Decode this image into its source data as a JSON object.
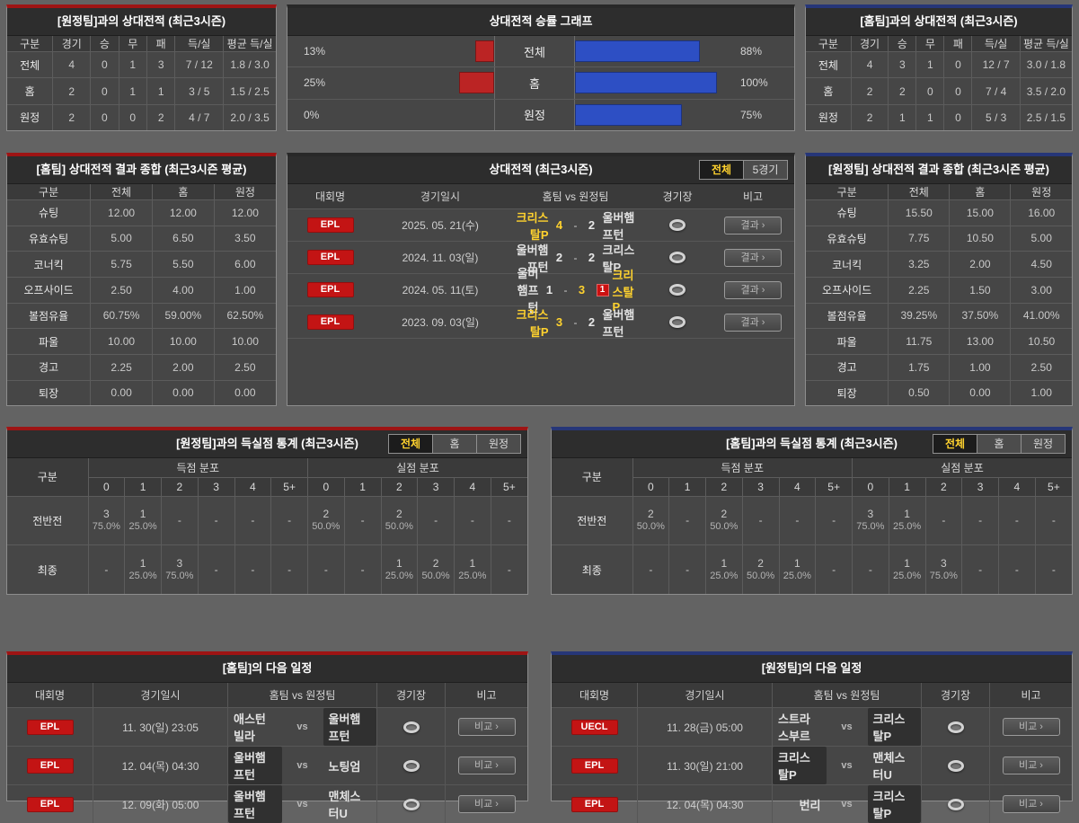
{
  "vs_away_record": {
    "title": "[원정팀]과의 상대전적 (최근3시즌)",
    "columns": [
      "구분",
      "경기",
      "승",
      "무",
      "패",
      "득/실",
      "평균 득/실"
    ],
    "rows": [
      [
        "전체",
        "4",
        "0",
        "1",
        "3",
        "7 / 12",
        "1.8 / 3.0"
      ],
      [
        "홈",
        "2",
        "0",
        "1",
        "1",
        "3 / 5",
        "1.5 / 2.5"
      ],
      [
        "원정",
        "2",
        "0",
        "0",
        "2",
        "4 / 7",
        "2.0 / 3.5"
      ]
    ]
  },
  "win_chart": {
    "title": "상대전적 승률 그래프",
    "rows": [
      {
        "label": "전체",
        "left_label": "13%",
        "left_pct": 13,
        "right_label": "88%",
        "right_pct": 88
      },
      {
        "label": "홈",
        "left_label": "25%",
        "left_pct": 25,
        "right_label": "100%",
        "right_pct": 100
      },
      {
        "label": "원정",
        "left_label": "0%",
        "left_pct": 0,
        "right_label": "75%",
        "right_pct": 75
      }
    ]
  },
  "chart_data": {
    "type": "bar",
    "title": "상대전적 승률 그래프",
    "categories": [
      "전체",
      "홈",
      "원정"
    ],
    "series": [
      {
        "name": "red-left",
        "color": "#bb2424",
        "values": [
          13,
          25,
          0
        ]
      },
      {
        "name": "blue-right",
        "color": "#2d4fc4",
        "values": [
          88,
          100,
          75
        ]
      }
    ],
    "unit": "%",
    "xlim": [
      0,
      100
    ],
    "orientation": "horizontal-diverging"
  },
  "vs_home_record": {
    "title": "[홈팀]과의 상대전적 (최근3시즌)",
    "columns": [
      "구분",
      "경기",
      "승",
      "무",
      "패",
      "득/실",
      "평균 득/실"
    ],
    "rows": [
      [
        "전체",
        "4",
        "3",
        "1",
        "0",
        "12 / 7",
        "3.0 / 1.8"
      ],
      [
        "홈",
        "2",
        "2",
        "0",
        "0",
        "7 / 4",
        "3.5 / 2.0"
      ],
      [
        "원정",
        "2",
        "1",
        "1",
        "0",
        "5 / 3",
        "2.5 / 1.5"
      ]
    ]
  },
  "home_summary": {
    "title": "[홈팀] 상대전적 결과 종합 (최근3시즌 평균)",
    "columns": [
      "구분",
      "전체",
      "홈",
      "원정"
    ],
    "rows": [
      [
        "슈팅",
        "12.00",
        "12.00",
        "12.00"
      ],
      [
        "유효슈팅",
        "5.00",
        "6.50",
        "3.50"
      ],
      [
        "코너킥",
        "5.75",
        "5.50",
        "6.00"
      ],
      [
        "오프사이드",
        "2.50",
        "4.00",
        "1.00"
      ],
      [
        "볼점유율",
        "60.75%",
        "59.00%",
        "62.50%"
      ],
      [
        "파울",
        "10.00",
        "10.00",
        "10.00"
      ],
      [
        "경고",
        "2.25",
        "2.00",
        "2.50"
      ],
      [
        "퇴장",
        "0.00",
        "0.00",
        "0.00"
      ]
    ]
  },
  "away_summary": {
    "title": "[원정팀] 상대전적 결과 종합 (최근3시즌 평균)",
    "columns": [
      "구분",
      "전체",
      "홈",
      "원정"
    ],
    "rows": [
      [
        "슈팅",
        "15.50",
        "15.00",
        "16.00"
      ],
      [
        "유효슈팅",
        "7.75",
        "10.50",
        "5.00"
      ],
      [
        "코너킥",
        "3.25",
        "2.00",
        "4.50"
      ],
      [
        "오프사이드",
        "2.25",
        "1.50",
        "3.00"
      ],
      [
        "볼점유율",
        "39.25%",
        "37.50%",
        "41.00%"
      ],
      [
        "파울",
        "11.75",
        "13.00",
        "10.50"
      ],
      [
        "경고",
        "1.75",
        "1.00",
        "2.50"
      ],
      [
        "퇴장",
        "0.50",
        "0.00",
        "1.00"
      ]
    ]
  },
  "h2h_matches": {
    "title": "상대전적 (최근3시즌)",
    "tabs": [
      {
        "label": "전체",
        "state": "active"
      },
      {
        "label": "5경기",
        "state": ""
      }
    ],
    "columns": [
      "대회명",
      "경기일시",
      "홈팀  vs  원정팀",
      "경기장",
      "비고"
    ],
    "rows": [
      {
        "league": "EPL",
        "date": "2025. 05. 21(수)",
        "home": "크리스탈P",
        "home_state": "win",
        "home_card": "",
        "score_home": "4",
        "sep": "-",
        "score_away": "2",
        "away_card": "",
        "away": "울버햄프턴",
        "away_state": "",
        "btn": "결과 ›"
      },
      {
        "league": "EPL",
        "date": "2024. 11. 03(일)",
        "home": "울버햄프턴",
        "home_state": "",
        "home_card": "",
        "score_home": "2",
        "sep": "-",
        "score_away": "2",
        "away_card": "",
        "away": "크리스탈P",
        "away_state": "",
        "btn": "결과 ›"
      },
      {
        "league": "EPL",
        "date": "2024. 05. 11(토)",
        "home": "울버햄프턴",
        "home_state": "",
        "home_card": "",
        "score_home": "1",
        "sep": "-",
        "score_away": "3",
        "away_card": "1",
        "away": "크리스탈P",
        "away_state": "win",
        "btn": "결과 ›"
      },
      {
        "league": "EPL",
        "date": "2023. 09. 03(일)",
        "home": "크리스탈P",
        "home_state": "win",
        "home_card": "",
        "score_home": "3",
        "sep": "-",
        "score_away": "2",
        "away_card": "",
        "away": "울버햄프턴",
        "away_state": "",
        "btn": "결과 ›"
      }
    ]
  },
  "goal_stats_left": {
    "title": "[원정팀]과의 득실점 통계 (최근3시즌)",
    "tabs": [
      {
        "label": "전체",
        "state": "active"
      },
      {
        "label": "홈",
        "state": ""
      },
      {
        "label": "원정",
        "state": ""
      }
    ],
    "corner_label": "구분",
    "groups": [
      "득점 분포",
      "실점 분포"
    ],
    "subcols": [
      "0",
      "1",
      "2",
      "3",
      "4",
      "5+",
      "0",
      "1",
      "2",
      "3",
      "4",
      "5+"
    ],
    "rows": [
      {
        "label": "전반전",
        "cells": [
          {
            "n": "3",
            "p": "75.0%"
          },
          {
            "n": "1",
            "p": "25.0%"
          },
          {
            "n": "-",
            "p": ""
          },
          {
            "n": "-",
            "p": ""
          },
          {
            "n": "-",
            "p": ""
          },
          {
            "n": "-",
            "p": ""
          },
          {
            "n": "2",
            "p": "50.0%"
          },
          {
            "n": "-",
            "p": ""
          },
          {
            "n": "2",
            "p": "50.0%"
          },
          {
            "n": "-",
            "p": ""
          },
          {
            "n": "-",
            "p": ""
          },
          {
            "n": "-",
            "p": ""
          }
        ]
      },
      {
        "label": "최종",
        "cells": [
          {
            "n": "-",
            "p": ""
          },
          {
            "n": "1",
            "p": "25.0%"
          },
          {
            "n": "3",
            "p": "75.0%"
          },
          {
            "n": "-",
            "p": ""
          },
          {
            "n": "-",
            "p": ""
          },
          {
            "n": "-",
            "p": ""
          },
          {
            "n": "-",
            "p": ""
          },
          {
            "n": "-",
            "p": ""
          },
          {
            "n": "1",
            "p": "25.0%"
          },
          {
            "n": "2",
            "p": "50.0%"
          },
          {
            "n": "1",
            "p": "25.0%"
          },
          {
            "n": "-",
            "p": ""
          }
        ]
      }
    ]
  },
  "goal_stats_right": {
    "title": "[홈팀]과의 득실점 통계 (최근3시즌)",
    "tabs": [
      {
        "label": "전체",
        "state": "active"
      },
      {
        "label": "홈",
        "state": ""
      },
      {
        "label": "원정",
        "state": ""
      }
    ],
    "corner_label": "구분",
    "groups": [
      "득점 분포",
      "실점 분포"
    ],
    "subcols": [
      "0",
      "1",
      "2",
      "3",
      "4",
      "5+",
      "0",
      "1",
      "2",
      "3",
      "4",
      "5+"
    ],
    "rows": [
      {
        "label": "전반전",
        "cells": [
          {
            "n": "2",
            "p": "50.0%"
          },
          {
            "n": "-",
            "p": ""
          },
          {
            "n": "2",
            "p": "50.0%"
          },
          {
            "n": "-",
            "p": ""
          },
          {
            "n": "-",
            "p": ""
          },
          {
            "n": "-",
            "p": ""
          },
          {
            "n": "3",
            "p": "75.0%"
          },
          {
            "n": "1",
            "p": "25.0%"
          },
          {
            "n": "-",
            "p": ""
          },
          {
            "n": "-",
            "p": ""
          },
          {
            "n": "-",
            "p": ""
          },
          {
            "n": "-",
            "p": ""
          }
        ]
      },
      {
        "label": "최종",
        "cells": [
          {
            "n": "-",
            "p": ""
          },
          {
            "n": "-",
            "p": ""
          },
          {
            "n": "1",
            "p": "25.0%"
          },
          {
            "n": "2",
            "p": "50.0%"
          },
          {
            "n": "1",
            "p": "25.0%"
          },
          {
            "n": "-",
            "p": ""
          },
          {
            "n": "-",
            "p": ""
          },
          {
            "n": "1",
            "p": "25.0%"
          },
          {
            "n": "3",
            "p": "75.0%"
          },
          {
            "n": "-",
            "p": ""
          },
          {
            "n": "-",
            "p": ""
          },
          {
            "n": "-",
            "p": ""
          }
        ]
      }
    ]
  },
  "schedule_home": {
    "title": "[홈팀]의 다음 일정",
    "columns": [
      "대회명",
      "경기일시",
      "홈팀  vs  원정팀",
      "경기장",
      "비고"
    ],
    "rows": [
      {
        "league": "EPL",
        "date": "11. 30(일) 23:05",
        "home": "애스턴빌라",
        "home_state": "",
        "vs": "vs",
        "away": "울버햄프턴",
        "away_state": "hl",
        "btn": "비교 ›"
      },
      {
        "league": "EPL",
        "date": "12. 04(목) 04:30",
        "home": "울버햄프턴",
        "home_state": "hl",
        "vs": "vs",
        "away": "노팅엄",
        "away_state": "",
        "btn": "비교 ›"
      },
      {
        "league": "EPL",
        "date": "12. 09(화) 05:00",
        "home": "울버햄프턴",
        "home_state": "hl",
        "vs": "vs",
        "away": "맨체스터U",
        "away_state": "",
        "btn": "비교 ›"
      }
    ]
  },
  "schedule_away": {
    "title": "[원정팀]의 다음 일정",
    "columns": [
      "대회명",
      "경기일시",
      "홈팀  vs  원정팀",
      "경기장",
      "비고"
    ],
    "rows": [
      {
        "league": "UECL",
        "date": "11. 28(금) 05:00",
        "home": "스트라스부르",
        "home_state": "",
        "vs": "vs",
        "away": "크리스탈P",
        "away_state": "hl",
        "btn": "비교 ›"
      },
      {
        "league": "EPL",
        "date": "11. 30(일) 21:00",
        "home": "크리스탈P",
        "home_state": "hl",
        "vs": "vs",
        "away": "맨체스터U",
        "away_state": "",
        "btn": "비교 ›"
      },
      {
        "league": "EPL",
        "date": "12. 04(목) 04:30",
        "home": "번리",
        "home_state": "",
        "vs": "vs",
        "away": "크리스탈P",
        "away_state": "hl",
        "btn": "비교 ›"
      }
    ]
  }
}
